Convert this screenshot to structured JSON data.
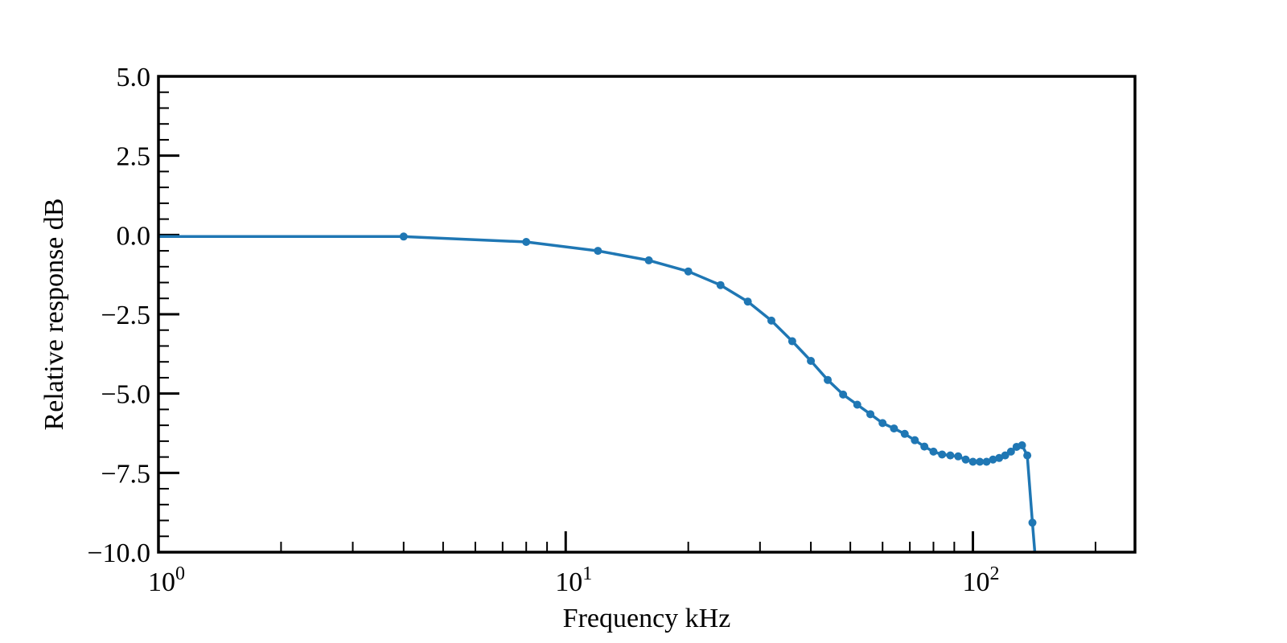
{
  "chart_data": {
    "type": "line",
    "title": "",
    "xlabel": "Frequency kHz",
    "ylabel": "Relative response dB",
    "xscale": "log",
    "xlim": [
      1,
      250
    ],
    "ylim": [
      -10.0,
      5.0
    ],
    "grid": false,
    "legend": "none",
    "line_color": "#1f77b4",
    "y_ticks": [
      {
        "value": 5.0,
        "label": "5.0"
      },
      {
        "value": 2.5,
        "label": "2.5"
      },
      {
        "value": 0.0,
        "label": "0.0"
      },
      {
        "value": -2.5,
        "label": "−2.5"
      },
      {
        "value": -5.0,
        "label": "−5.0"
      },
      {
        "value": -7.5,
        "label": "−7.5"
      },
      {
        "value": -10.0,
        "label": "−10.0"
      }
    ],
    "x_ticks": [
      {
        "value": 1,
        "base": "10",
        "exp": "0"
      },
      {
        "value": 10,
        "base": "10",
        "exp": "1"
      },
      {
        "value": 100,
        "base": "10",
        "exp": "2"
      }
    ],
    "series": [
      {
        "x": [
          1,
          4,
          8,
          12,
          16,
          20,
          24,
          28,
          32,
          36,
          40,
          44,
          48,
          52,
          56,
          60,
          64,
          68,
          72,
          76,
          80,
          84,
          88,
          92,
          96,
          100,
          104,
          108,
          112,
          116,
          120,
          124,
          128,
          132,
          136,
          140,
          144
        ],
        "y": [
          -0.05,
          -0.05,
          -0.22,
          -0.5,
          -0.8,
          -1.15,
          -1.58,
          -2.1,
          -2.7,
          -3.35,
          -3.97,
          -4.57,
          -5.03,
          -5.35,
          -5.65,
          -5.93,
          -6.1,
          -6.27,
          -6.47,
          -6.67,
          -6.83,
          -6.92,
          -6.95,
          -6.98,
          -7.08,
          -7.15,
          -7.15,
          -7.15,
          -7.08,
          -7.03,
          -6.95,
          -6.83,
          -6.68,
          -6.63,
          -6.95,
          -9.07,
          -11.0
        ]
      }
    ]
  }
}
